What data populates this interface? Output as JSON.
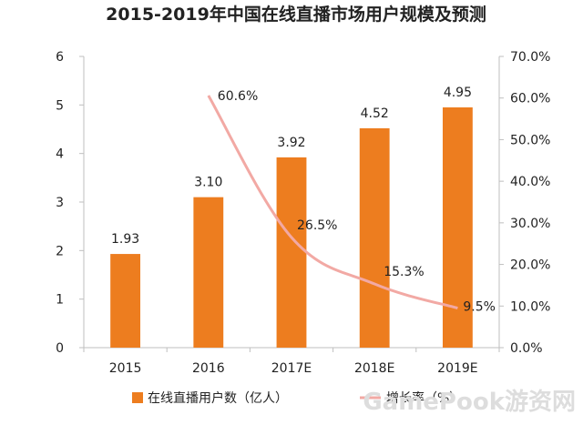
{
  "chart_data": {
    "type": "bar",
    "title": "2015-2019年中国在线直播市场用户规模及预测",
    "categories": [
      "2015",
      "2016",
      "2017E",
      "2018E",
      "2019E"
    ],
    "series": [
      {
        "name": "在线直播用户数（亿人）",
        "type": "bar",
        "axis": "left",
        "values": [
          1.93,
          3.1,
          3.92,
          4.52,
          4.95
        ],
        "labels": [
          "1.93",
          "3.10",
          "3.92",
          "4.52",
          "4.95"
        ],
        "color": "#ED7D1F"
      },
      {
        "name": "增长率（%）",
        "type": "line",
        "axis": "right",
        "values": [
          null,
          60.6,
          26.5,
          15.3,
          9.5
        ],
        "labels": [
          "",
          "60.6%",
          "26.5%",
          "15.3%",
          "9.5%"
        ],
        "color": "#F2A9A4"
      }
    ],
    "y_left": {
      "min": 0,
      "max": 6,
      "ticks": [
        "0",
        "1",
        "2",
        "3",
        "4",
        "5",
        "6"
      ]
    },
    "y_right": {
      "min": 0,
      "max": 70,
      "ticks": [
        "0.0%",
        "10.0%",
        "20.0%",
        "30.0%",
        "40.0%",
        "50.0%",
        "60.0%",
        "70.0%"
      ]
    },
    "grid": false,
    "legend_position": "bottom"
  },
  "watermark": "GamePook游资网"
}
